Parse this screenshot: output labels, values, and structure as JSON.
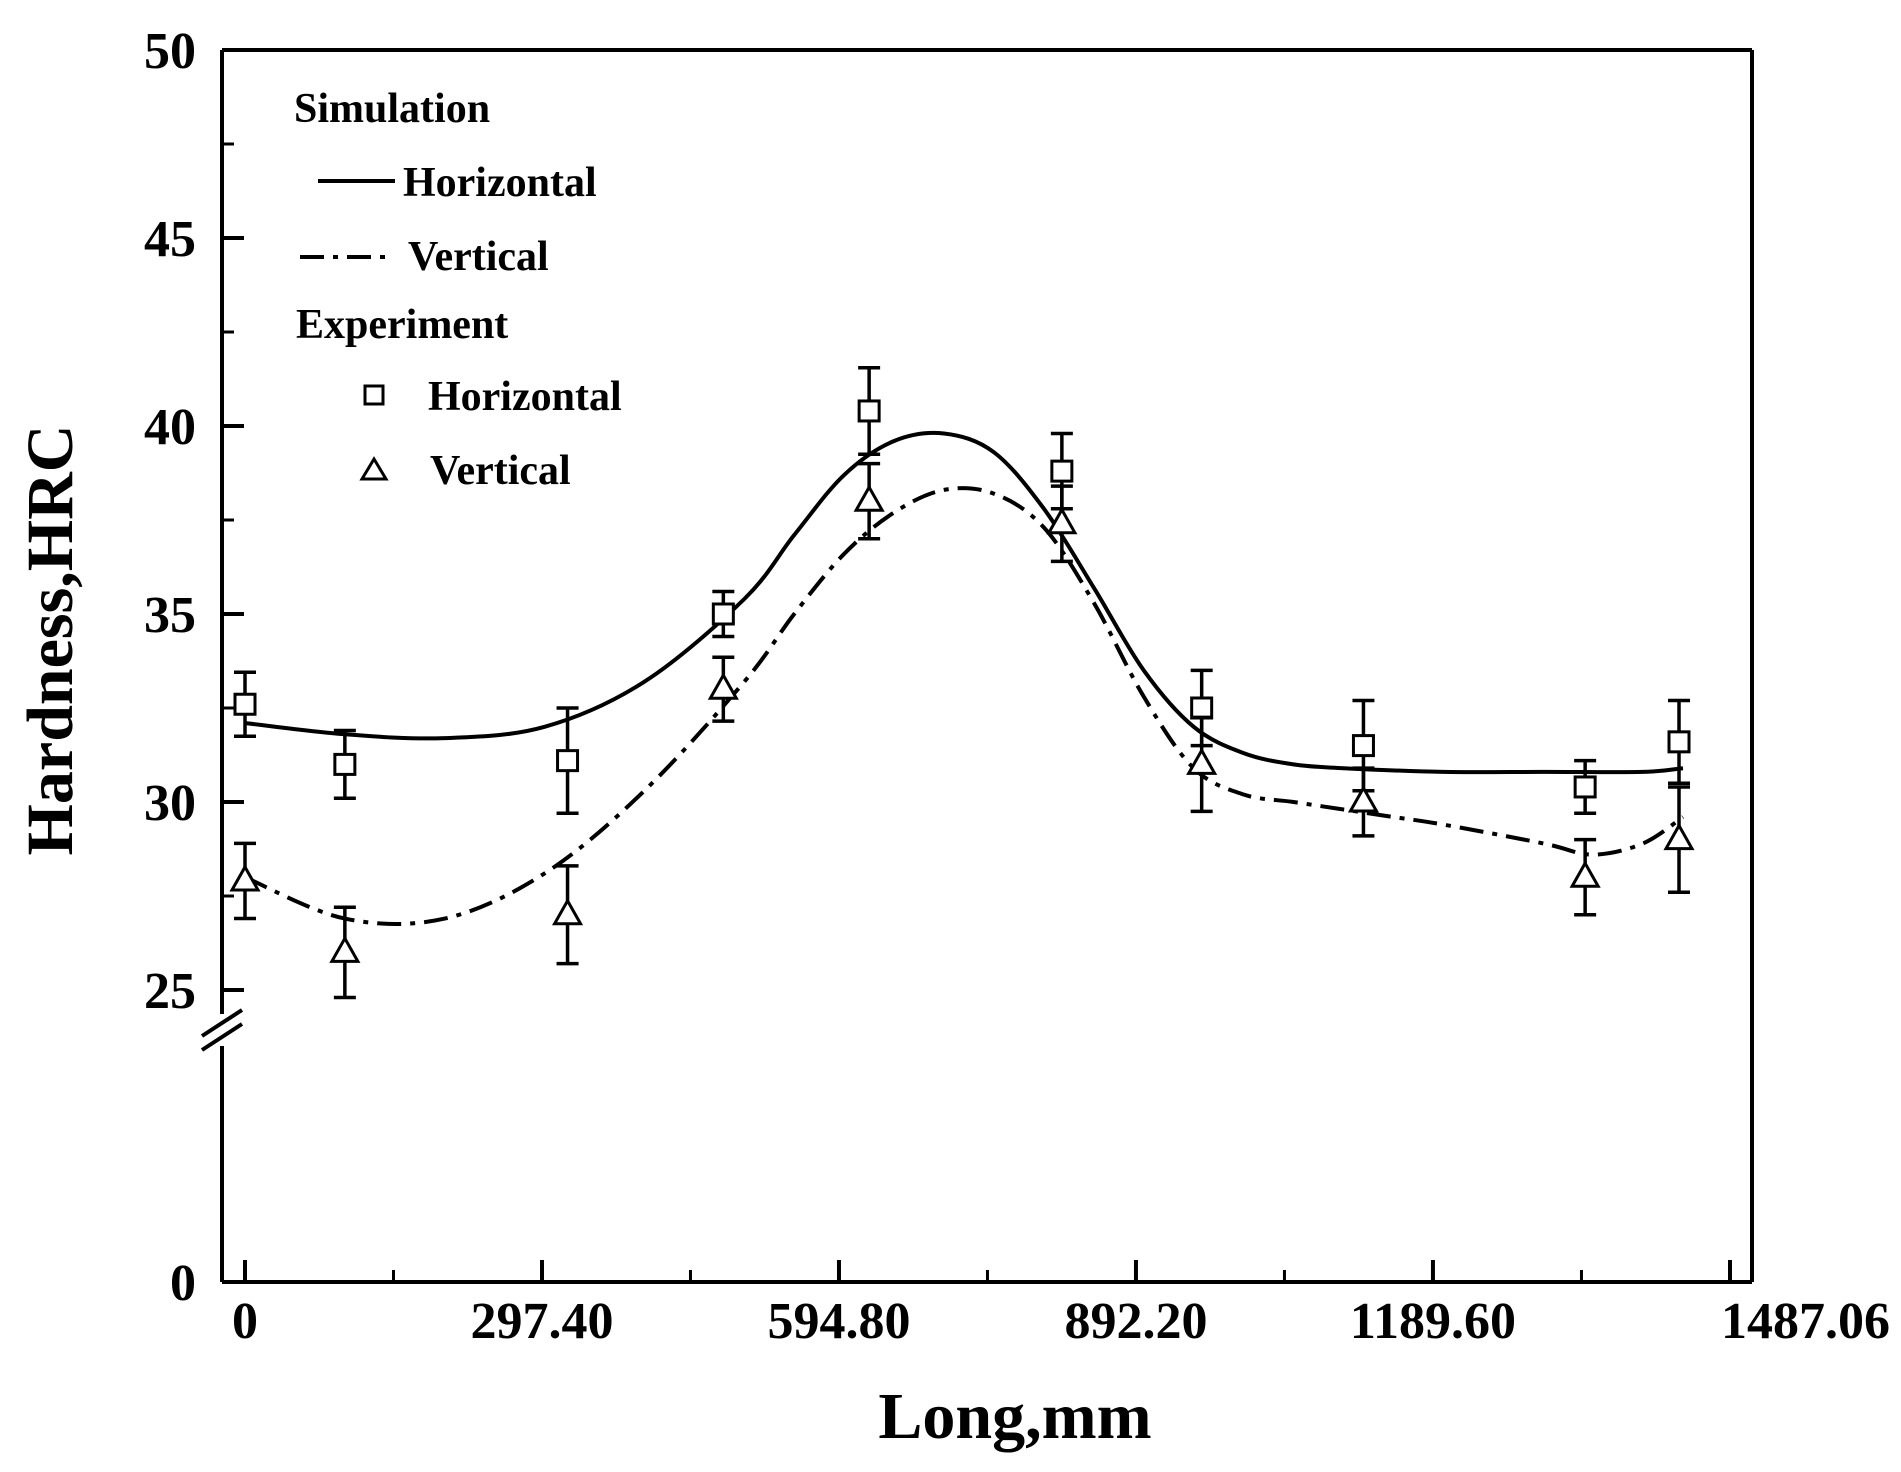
{
  "chart_data": {
    "type": "line",
    "xlabel": "Long,mm",
    "ylabel": "Hardness,HRC",
    "xlim": [
      -20,
      1487.06
    ],
    "ylim": [
      0,
      50
    ],
    "y_axis_break": [
      0,
      24
    ],
    "x_tick_labels": [
      {
        "value": 0,
        "label": "0"
      },
      {
        "value": 297.4,
        "label": "297.40"
      },
      {
        "value": 594.8,
        "label": "594.80"
      },
      {
        "value": 892.2,
        "label": "892.20"
      },
      {
        "value": 1189.6,
        "label": "1189.60"
      },
      {
        "value": 1487.06,
        "label": "1487.06"
      }
    ],
    "y_tick_labels": [
      {
        "value": 0,
        "label": "0"
      },
      {
        "value": 25,
        "label": "25"
      },
      {
        "value": 30,
        "label": "30"
      },
      {
        "value": 35,
        "label": "35"
      },
      {
        "value": 40,
        "label": "40"
      },
      {
        "value": 45,
        "label": "45"
      },
      {
        "value": 50,
        "label": "50"
      }
    ],
    "legend": {
      "simulation_title": "Simulation",
      "sim_horizontal": "Horizontal",
      "sim_vertical": "Vertical",
      "experiment_title": "Experiment",
      "exp_horizontal": "Horizontal",
      "exp_vertical": "Vertical"
    },
    "simulation": [
      {
        "name": "Horizontal",
        "style": "solid",
        "x": [
          0,
          100,
          200,
          300,
          400,
          500,
          550,
          600,
          650,
          700,
          750,
          800,
          850,
          900,
          950,
          1000,
          1050,
          1100,
          1200,
          1300,
          1400,
          1440
        ],
        "y": [
          32.1,
          31.8,
          31.7,
          32.0,
          33.2,
          35.4,
          37.1,
          38.7,
          39.6,
          39.8,
          39.3,
          37.8,
          35.7,
          33.5,
          32.0,
          31.3,
          31.0,
          30.9,
          30.8,
          30.8,
          30.8,
          30.9
        ]
      },
      {
        "name": "Vertical",
        "style": "dashdot",
        "x": [
          0,
          100,
          200,
          300,
          400,
          500,
          550,
          600,
          650,
          700,
          750,
          800,
          850,
          900,
          950,
          1000,
          1050,
          1100,
          1150,
          1200,
          1300,
          1350,
          1400,
          1440
        ],
        "y": [
          28.0,
          26.9,
          26.9,
          28.1,
          30.3,
          33.2,
          35.0,
          36.6,
          37.7,
          38.3,
          38.2,
          37.3,
          35.3,
          32.8,
          30.9,
          30.2,
          30.0,
          29.8,
          29.6,
          29.4,
          28.9,
          28.6,
          28.9,
          29.6
        ]
      }
    ],
    "experiment": [
      {
        "name": "Horizontal",
        "marker": "square",
        "x": [
          0,
          100,
          323,
          479,
          625,
          818,
          958,
          1120,
          1342,
          1436
        ],
        "y": [
          32.6,
          31.0,
          31.1,
          35.0,
          40.4,
          38.8,
          32.5,
          31.5,
          30.4,
          31.6
        ],
        "err": [
          0.85,
          0.9,
          1.4,
          0.6,
          1.15,
          1.0,
          1.0,
          1.2,
          0.7,
          1.1
        ]
      },
      {
        "name": "Vertical",
        "marker": "triangle",
        "x": [
          0,
          100,
          323,
          479,
          625,
          818,
          958,
          1120,
          1342,
          1436
        ],
        "y": [
          27.9,
          26.0,
          27.0,
          33.0,
          38.0,
          37.4,
          31.0,
          30.0,
          28.0,
          29.0
        ],
        "err": [
          1.0,
          1.2,
          1.3,
          0.85,
          1.0,
          1.0,
          1.25,
          0.9,
          1.0,
          1.4
        ]
      }
    ]
  }
}
